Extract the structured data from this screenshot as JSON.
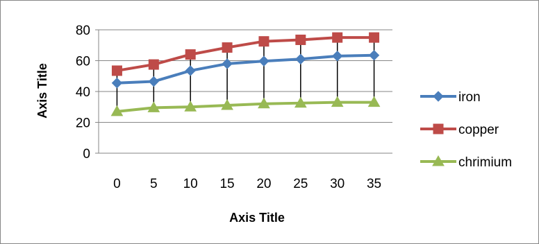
{
  "chart_data": {
    "type": "line",
    "categories": [
      "0",
      "5",
      "10",
      "15",
      "20",
      "25",
      "30",
      "35"
    ],
    "series": [
      {
        "name": "iron",
        "values": [
          45.5,
          46.5,
          53.5,
          58,
          59.7,
          61,
          63,
          63.5
        ],
        "color": "#4A7EBB",
        "marker": "diamond"
      },
      {
        "name": "copper",
        "values": [
          53.5,
          57.5,
          64,
          68.5,
          72.5,
          73.5,
          75,
          75
        ],
        "color": "#BE4B48",
        "marker": "square"
      },
      {
        "name": "chrimium",
        "values": [
          27,
          29.5,
          30,
          31,
          32,
          32.5,
          33,
          33
        ],
        "color": "#98B954",
        "marker": "triangle"
      }
    ],
    "xlabel": "Axis Title",
    "ylabel": "Axis Title",
    "ylim": [
      0,
      80
    ],
    "yticks": [
      "0",
      "20",
      "40",
      "60",
      "80"
    ],
    "grid": true,
    "legend_position": "right",
    "high_low_lines": true
  }
}
